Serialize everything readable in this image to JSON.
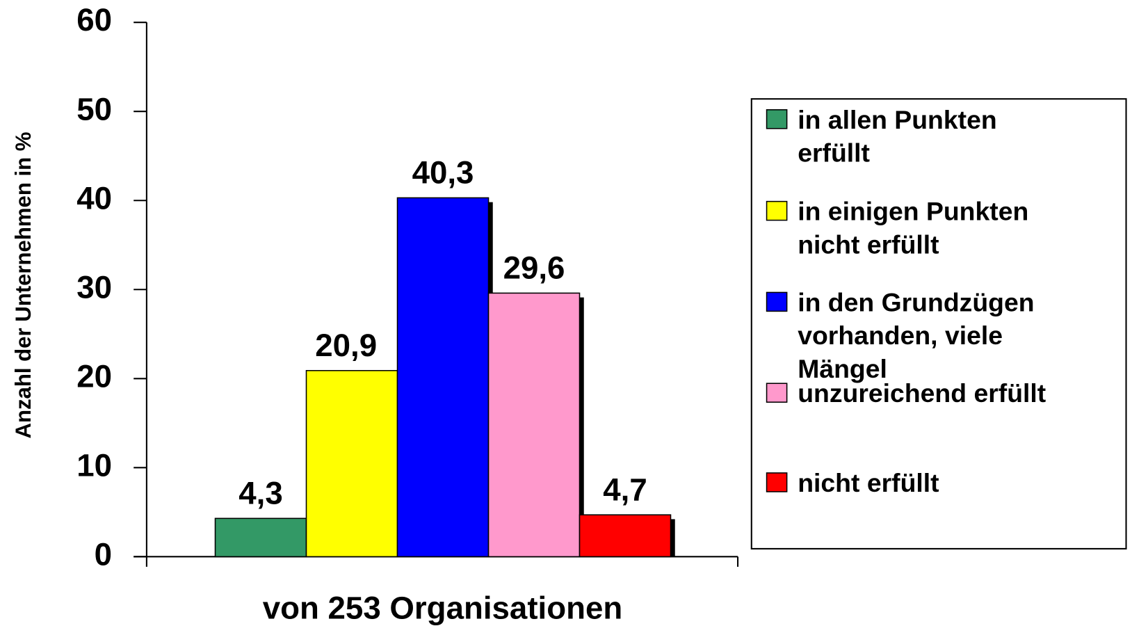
{
  "chart_data": {
    "type": "bar",
    "y_label": "Anzahl der Unternehmen in %",
    "categories": [
      "von 253 Organisationen"
    ],
    "series": [
      {
        "name": "in allen Punkten erfüllt",
        "color": "#339966",
        "values": [
          4.3
        ],
        "value_labels": [
          "4,3"
        ]
      },
      {
        "name": "in einigen Punkten nicht erfüllt",
        "color": "#ffff00",
        "values": [
          20.9
        ],
        "value_labels": [
          "20,9"
        ]
      },
      {
        "name": "in den Grundzügen vorhanden, viele Mängel",
        "color": "#0000ff",
        "values": [
          40.3
        ],
        "value_labels": [
          "40,3"
        ]
      },
      {
        "name": "unzureichend erfüllt",
        "color": "#ff99cc",
        "values": [
          29.6
        ],
        "value_labels": [
          "29,6"
        ]
      },
      {
        "name": "nicht erfüllt",
        "color": "#ff0000",
        "values": [
          4.7
        ],
        "value_labels": [
          "4,7"
        ]
      }
    ],
    "ylim": [
      0,
      60
    ],
    "yticks": [
      0,
      10,
      20,
      30,
      40,
      50,
      60
    ],
    "legend": "right"
  }
}
